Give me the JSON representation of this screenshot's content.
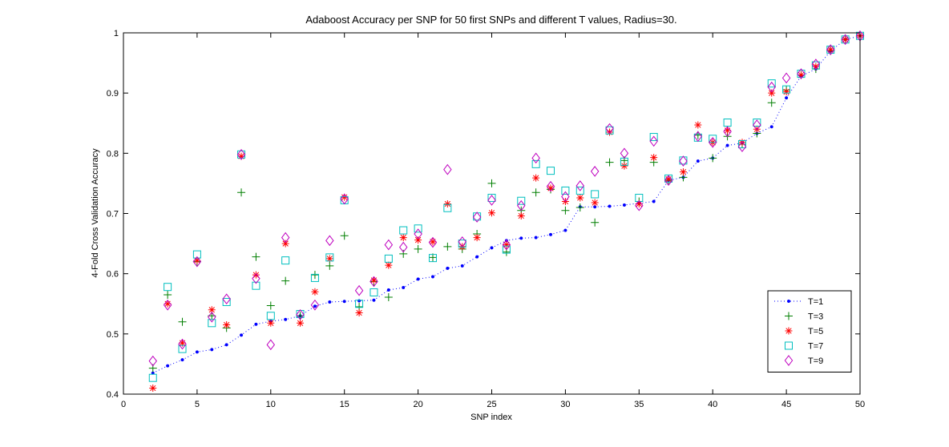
{
  "chart_data": {
    "type": "scatter",
    "title": "Adaboost Accuracy per SNP for 50 first SNPs and different T values, Radius=30.",
    "xlabel": "SNP index",
    "ylabel": "4-Fold Cross Validation Accuracy",
    "xlim": [
      0,
      50
    ],
    "ylim": [
      0.4,
      1
    ],
    "x_ticks": [
      "0",
      "5",
      "10",
      "15",
      "20",
      "25",
      "30",
      "35",
      "40",
      "45",
      "50"
    ],
    "y_ticks": [
      "0.4",
      "0.5",
      "0.6",
      "0.7",
      "0.8",
      "0.9",
      "1"
    ],
    "grid": false,
    "legend_position": "bottom-right",
    "x": [
      2,
      3,
      4,
      5,
      6,
      7,
      8,
      9,
      10,
      11,
      12,
      13,
      14,
      15,
      16,
      17,
      18,
      19,
      20,
      21,
      22,
      23,
      24,
      25,
      26,
      27,
      28,
      29,
      30,
      31,
      32,
      33,
      34,
      35,
      36,
      37,
      38,
      39,
      40,
      41,
      42,
      43,
      44,
      45,
      46,
      47,
      48,
      49,
      50
    ],
    "series": [
      {
        "name": "T=1",
        "marker": "dot",
        "line": "dotted",
        "color": "#0000ff",
        "values": [
          0.435,
          0.447,
          0.457,
          0.47,
          0.474,
          0.482,
          0.498,
          0.516,
          0.521,
          0.524,
          0.53,
          0.546,
          0.553,
          0.554,
          0.555,
          0.556,
          0.573,
          0.577,
          0.591,
          0.595,
          0.609,
          0.613,
          0.628,
          0.643,
          0.655,
          0.659,
          0.66,
          0.665,
          0.672,
          0.711,
          0.711,
          0.712,
          0.714,
          0.717,
          0.72,
          0.755,
          0.76,
          0.787,
          0.792,
          0.813,
          0.817,
          0.833,
          0.844,
          0.892,
          0.928,
          0.94,
          0.97,
          0.989,
          0.995
        ]
      },
      {
        "name": "T=3",
        "marker": "plus",
        "color": "#007f00",
        "values": [
          0.443,
          0.565,
          0.52,
          0.62,
          0.53,
          0.51,
          0.735,
          0.628,
          0.547,
          0.588,
          0.53,
          0.598,
          0.613,
          0.663,
          0.545,
          0.587,
          0.561,
          0.633,
          0.641,
          0.627,
          0.645,
          0.641,
          0.666,
          0.75,
          0.636,
          0.705,
          0.735,
          0.74,
          0.705,
          0.71,
          0.685,
          0.785,
          0.788,
          0.72,
          0.785,
          0.755,
          0.76,
          0.83,
          0.792,
          0.828,
          0.815,
          0.833,
          0.884,
          0.905,
          0.93,
          0.94,
          0.97,
          0.989,
          0.995
        ]
      },
      {
        "name": "T=5",
        "marker": "star",
        "color": "#ff0000",
        "values": [
          0.41,
          0.55,
          0.485,
          0.622,
          0.54,
          0.515,
          0.795,
          0.598,
          0.518,
          0.65,
          0.518,
          0.57,
          0.625,
          0.727,
          0.535,
          0.589,
          0.614,
          0.66,
          0.656,
          0.653,
          0.716,
          0.645,
          0.66,
          0.701,
          0.648,
          0.696,
          0.759,
          0.742,
          0.72,
          0.726,
          0.718,
          0.835,
          0.779,
          0.716,
          0.793,
          0.757,
          0.769,
          0.847,
          0.818,
          0.838,
          0.818,
          0.84,
          0.9,
          0.902,
          0.93,
          0.944,
          0.972,
          0.989,
          0.995
        ]
      },
      {
        "name": "T=7",
        "marker": "square",
        "color": "#00bfbf",
        "values": [
          0.427,
          0.578,
          0.475,
          0.632,
          0.518,
          0.553,
          0.798,
          0.58,
          0.53,
          0.622,
          0.533,
          0.593,
          0.627,
          0.722,
          0.55,
          0.569,
          0.625,
          0.672,
          0.675,
          0.626,
          0.709,
          0.65,
          0.695,
          0.726,
          0.64,
          0.721,
          0.782,
          0.771,
          0.738,
          0.738,
          0.732,
          0.838,
          0.786,
          0.726,
          0.827,
          0.758,
          0.788,
          0.826,
          0.824,
          0.851,
          0.815,
          0.851,
          0.916,
          0.906,
          0.932,
          0.946,
          0.972,
          0.989,
          0.995
        ]
      },
      {
        "name": "T=9",
        "marker": "diamond",
        "color": "#bf00bf",
        "values": [
          0.455,
          0.548,
          0.483,
          0.62,
          0.528,
          0.558,
          0.798,
          0.592,
          0.482,
          0.66,
          0.532,
          0.548,
          0.655,
          0.724,
          0.572,
          0.587,
          0.648,
          0.644,
          0.666,
          0.652,
          0.773,
          0.653,
          0.694,
          0.722,
          0.648,
          0.713,
          0.792,
          0.745,
          0.728,
          0.746,
          0.77,
          0.841,
          0.8,
          0.713,
          0.82,
          0.755,
          0.787,
          0.828,
          0.818,
          0.836,
          0.811,
          0.847,
          0.91,
          0.925,
          0.932,
          0.948,
          0.972,
          0.989,
          0.995
        ]
      }
    ]
  }
}
